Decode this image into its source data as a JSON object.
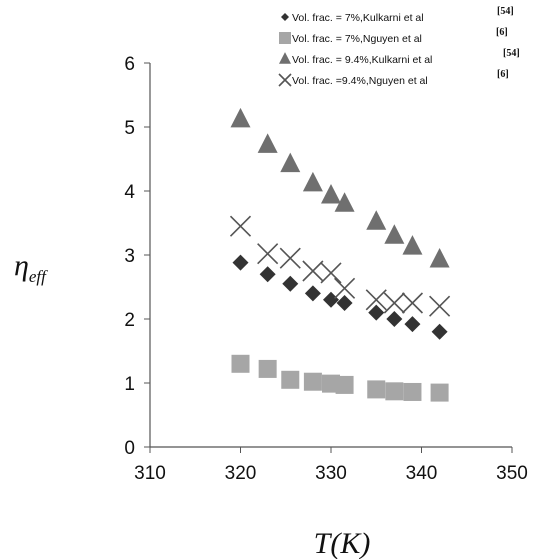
{
  "chart_data": {
    "type": "scatter",
    "xlabel": "T(K)",
    "ylabel_symbol": "η",
    "ylabel_subscript": "eff",
    "xlim": [
      310,
      350
    ],
    "ylim": [
      0,
      6
    ],
    "xticks": [
      "310",
      "320",
      "330",
      "340",
      "350"
    ],
    "yticks": [
      "0",
      "1",
      "2",
      "3",
      "4",
      "5",
      "6"
    ],
    "grid": false,
    "legend_position": "top-right",
    "series": [
      {
        "name": "Vol. frac. = 7%,Kulkarni et al",
        "ref": "[54]",
        "marker": "diamond",
        "color": "#333333",
        "points": [
          [
            320,
            2.88
          ],
          [
            323,
            2.7
          ],
          [
            325.5,
            2.55
          ],
          [
            328,
            2.4
          ],
          [
            330,
            2.3
          ],
          [
            331.5,
            2.25
          ],
          [
            335,
            2.1
          ],
          [
            337,
            2.0
          ],
          [
            339,
            1.92
          ],
          [
            342,
            1.8
          ]
        ]
      },
      {
        "name": "Vol. frac. = 7%,Nguyen et al",
        "ref": "[6]",
        "marker": "square",
        "color": "#a6a6a6",
        "points": [
          [
            320,
            1.3
          ],
          [
            323,
            1.22
          ],
          [
            325.5,
            1.05
          ],
          [
            328,
            1.02
          ],
          [
            330,
            0.99
          ],
          [
            331.5,
            0.97
          ],
          [
            335,
            0.9
          ],
          [
            337,
            0.87
          ],
          [
            339,
            0.86
          ],
          [
            342,
            0.85
          ]
        ]
      },
      {
        "name": "Vol. frac. = 9.4%,Kulkarni et al",
        "ref": "[54]",
        "marker": "triangle",
        "color": "#6f6f6f",
        "points": [
          [
            320,
            5.12
          ],
          [
            323,
            4.72
          ],
          [
            325.5,
            4.42
          ],
          [
            328,
            4.12
          ],
          [
            330,
            3.93
          ],
          [
            331.5,
            3.8
          ],
          [
            335,
            3.52
          ],
          [
            337,
            3.3
          ],
          [
            339,
            3.13
          ],
          [
            342,
            2.93
          ]
        ]
      },
      {
        "name": "Vol. frac. =9.4%,Nguyen et al",
        "ref": "[6]",
        "marker": "x",
        "color": "#555555",
        "points": [
          [
            320,
            3.45
          ],
          [
            323,
            3.02
          ],
          [
            325.5,
            2.95
          ],
          [
            328,
            2.75
          ],
          [
            330,
            2.72
          ],
          [
            331.5,
            2.48
          ],
          [
            335,
            2.3
          ],
          [
            337,
            2.25
          ],
          [
            339,
            2.25
          ],
          [
            342,
            2.2
          ]
        ]
      }
    ]
  }
}
